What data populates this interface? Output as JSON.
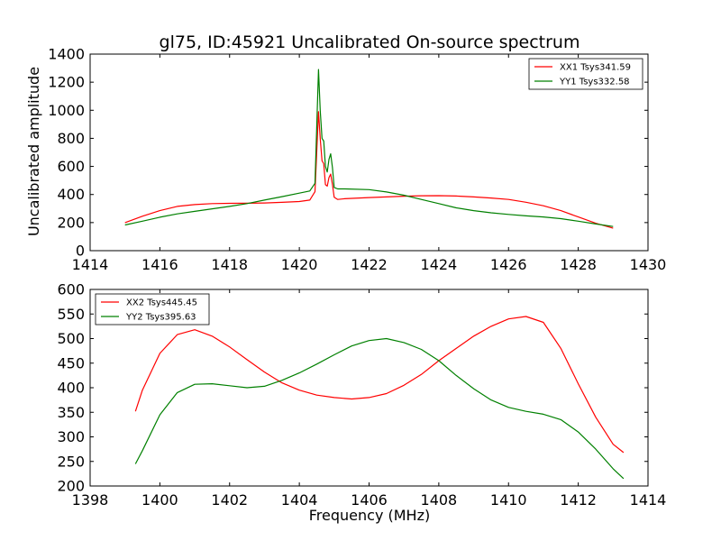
{
  "chart_data": [
    {
      "type": "line",
      "title": "gl75, ID:45921 Uncalibrated On-source spectrum",
      "xlabel": "",
      "ylabel": "Uncalibrated amplitude",
      "xlim": [
        1414,
        1430
      ],
      "ylim": [
        0,
        1400
      ],
      "xticks": [
        "1414",
        "1416",
        "1418",
        "1420",
        "1422",
        "1424",
        "1426",
        "1428",
        "1430"
      ],
      "yticks": [
        "0",
        "200",
        "400",
        "600",
        "800",
        "1000",
        "1200",
        "1400"
      ],
      "legend": "top-right",
      "grid": false,
      "series": [
        {
          "name": "XX1 Tsys341.59",
          "color": "#ff0000",
          "x": [
            1415.0,
            1415.5,
            1416.0,
            1416.5,
            1417.0,
            1417.5,
            1418.0,
            1418.5,
            1419.0,
            1419.5,
            1420.0,
            1420.3,
            1420.45,
            1420.55,
            1420.6,
            1420.65,
            1420.7,
            1420.75,
            1420.8,
            1420.85,
            1420.9,
            1420.95,
            1421.0,
            1421.1,
            1421.3,
            1422.0,
            1422.5,
            1423.0,
            1423.5,
            1424.0,
            1424.5,
            1425.0,
            1425.5,
            1426.0,
            1426.5,
            1427.0,
            1427.5,
            1428.0,
            1428.5,
            1429.0
          ],
          "values": [
            200,
            245,
            285,
            315,
            328,
            335,
            337,
            338,
            340,
            344,
            350,
            360,
            420,
            990,
            800,
            640,
            620,
            470,
            460,
            520,
            545,
            470,
            380,
            365,
            370,
            378,
            383,
            388,
            391,
            392,
            389,
            383,
            375,
            365,
            345,
            320,
            285,
            240,
            195,
            160
          ]
        },
        {
          "name": "YY1 Tsys332.58",
          "color": "#008000",
          "x": [
            1415.0,
            1415.5,
            1416.0,
            1416.5,
            1417.0,
            1417.5,
            1418.0,
            1418.5,
            1419.0,
            1419.5,
            1420.0,
            1420.3,
            1420.45,
            1420.55,
            1420.6,
            1420.65,
            1420.7,
            1420.75,
            1420.8,
            1420.85,
            1420.9,
            1420.95,
            1421.0,
            1421.1,
            1421.3,
            1422.0,
            1422.5,
            1423.0,
            1423.5,
            1424.0,
            1424.5,
            1425.0,
            1425.5,
            1426.0,
            1426.5,
            1427.0,
            1427.5,
            1428.0,
            1428.5,
            1429.0
          ],
          "values": [
            183,
            210,
            238,
            262,
            280,
            298,
            315,
            335,
            360,
            385,
            410,
            425,
            480,
            1290,
            1000,
            800,
            780,
            600,
            560,
            650,
            690,
            590,
            450,
            440,
            440,
            435,
            418,
            395,
            365,
            335,
            305,
            285,
            270,
            258,
            248,
            240,
            228,
            210,
            190,
            172
          ]
        }
      ]
    },
    {
      "type": "line",
      "title": "",
      "xlabel": "Frequency (MHz)",
      "ylabel": "",
      "xlim": [
        1398,
        1414
      ],
      "ylim": [
        200,
        600
      ],
      "xticks": [
        "1398",
        "1400",
        "1402",
        "1404",
        "1406",
        "1408",
        "1410",
        "1412",
        "1414"
      ],
      "yticks": [
        "200",
        "250",
        "300",
        "350",
        "400",
        "450",
        "500",
        "550",
        "600"
      ],
      "legend": "top-left",
      "grid": false,
      "series": [
        {
          "name": "XX2 Tsys445.45",
          "color": "#ff0000",
          "x": [
            1399.3,
            1399.5,
            1400.0,
            1400.5,
            1401.0,
            1401.5,
            1402.0,
            1402.5,
            1403.0,
            1403.5,
            1404.0,
            1404.5,
            1405.0,
            1405.5,
            1406.0,
            1406.5,
            1407.0,
            1407.5,
            1408.0,
            1408.5,
            1409.0,
            1409.5,
            1410.0,
            1410.5,
            1411.0,
            1411.5,
            1412.0,
            1412.5,
            1413.0,
            1413.3
          ],
          "values": [
            352,
            395,
            470,
            508,
            518,
            505,
            483,
            457,
            432,
            410,
            395,
            385,
            380,
            377,
            380,
            388,
            405,
            427,
            455,
            480,
            505,
            525,
            540,
            545,
            533,
            480,
            408,
            340,
            285,
            268
          ]
        },
        {
          "name": "YY2 Tsys395.63",
          "color": "#008000",
          "x": [
            1399.3,
            1399.5,
            1400.0,
            1400.5,
            1401.0,
            1401.5,
            1402.0,
            1402.5,
            1403.0,
            1403.5,
            1404.0,
            1404.5,
            1405.0,
            1405.5,
            1406.0,
            1406.5,
            1407.0,
            1407.5,
            1408.0,
            1408.5,
            1409.0,
            1409.5,
            1410.0,
            1410.5,
            1411.0,
            1411.5,
            1412.0,
            1412.5,
            1413.0,
            1413.3
          ],
          "values": [
            245,
            272,
            345,
            390,
            407,
            408,
            404,
            400,
            403,
            415,
            430,
            448,
            467,
            485,
            496,
            500,
            492,
            478,
            455,
            425,
            398,
            375,
            360,
            352,
            346,
            335,
            310,
            275,
            235,
            215
          ]
        }
      ]
    }
  ]
}
